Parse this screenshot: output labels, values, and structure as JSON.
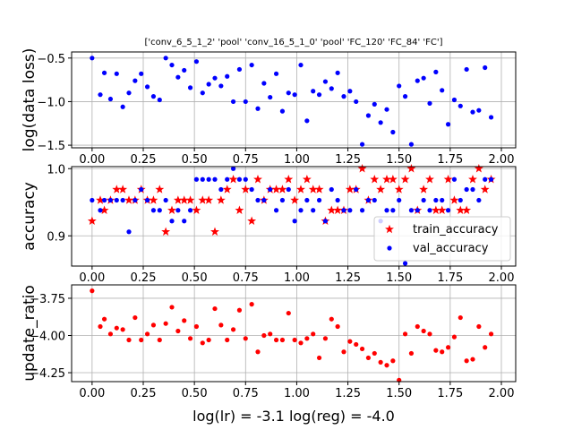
{
  "chart_data": {
    "title": "['conv_6_5_1_2' 'pool' 'conv_16_5_1_0' 'pool' 'FC_120' 'FC_84' 'FC']",
    "xlabel": "log(lr) = -3.1   log(reg) = -4.0",
    "grid": true,
    "panels": [
      {
        "type": "scatter",
        "ylabel": "log(data loss)",
        "xlim": [
          -0.1,
          2.07
        ],
        "ylim": [
          -1.53,
          -0.43
        ],
        "xticks": [
          0.0,
          0.25,
          0.5,
          0.75,
          1.0,
          1.25,
          1.5,
          1.75,
          2.0
        ],
        "xtick_labels": [
          "0.00",
          "0.25",
          "0.50",
          "0.75",
          "1.00",
          "1.25",
          "1.50",
          "1.75",
          "2.00"
        ],
        "yticks": [
          -0.5,
          -1.0,
          -1.5
        ],
        "ytick_labels": [
          "−0.5",
          "−1.0",
          "−1.5"
        ],
        "series": [
          {
            "color": "#0000ff",
            "marker": "dot",
            "x": [
              0.0,
              0.04,
              0.06,
              0.09,
              0.12,
              0.15,
              0.18,
              0.21,
              0.24,
              0.27,
              0.3,
              0.33,
              0.36,
              0.39,
              0.42,
              0.45,
              0.48,
              0.51,
              0.54,
              0.57,
              0.6,
              0.63,
              0.66,
              0.69,
              0.72,
              0.75,
              0.78,
              0.81,
              0.84,
              0.87,
              0.9,
              0.93,
              0.96,
              0.99,
              1.02,
              1.05,
              1.08,
              1.11,
              1.14,
              1.17,
              1.2,
              1.23,
              1.26,
              1.29,
              1.32,
              1.35,
              1.38,
              1.41,
              1.44,
              1.47,
              1.5,
              1.53,
              1.56,
              1.59,
              1.62,
              1.65,
              1.68,
              1.71,
              1.74,
              1.77,
              1.8,
              1.83,
              1.86,
              1.89,
              1.92,
              1.95
            ],
            "y": [
              -0.5,
              -0.92,
              -0.67,
              -0.97,
              -0.68,
              -1.06,
              -0.9,
              -0.76,
              -0.68,
              -0.83,
              -0.94,
              -0.98,
              -0.5,
              -0.58,
              -0.72,
              -0.64,
              -0.84,
              -0.54,
              -0.9,
              -0.8,
              -0.73,
              -0.82,
              -0.71,
              -1.0,
              -0.63,
              -1.0,
              -0.58,
              -1.08,
              -0.79,
              -0.95,
              -0.68,
              -1.11,
              -0.9,
              -0.92,
              -0.58,
              -1.22,
              -0.88,
              -0.92,
              -0.77,
              -0.85,
              -0.67,
              -0.94,
              -0.88,
              -1.0,
              -1.49,
              -1.16,
              -1.03,
              -1.24,
              -1.09,
              -1.35,
              -0.82,
              -0.94,
              -1.49,
              -0.76,
              -0.73,
              -1.02,
              -0.66,
              -0.87,
              -1.26,
              -0.98,
              -1.05,
              -0.63,
              -1.12,
              -1.1,
              -0.61,
              -1.18
            ]
          }
        ]
      },
      {
        "type": "scatter",
        "ylabel": "accuracy",
        "xlim": [
          -0.1,
          2.07
        ],
        "ylim": [
          0.855,
          1.003
        ],
        "yticks": [
          0.9,
          1.0
        ],
        "ytick_labels": [
          "0.9",
          "1.0"
        ],
        "legend": "lower-right",
        "series": [
          {
            "name": "train_accuracy",
            "color": "#ff0000",
            "marker": "star",
            "x": [
              0.0,
              0.04,
              0.06,
              0.09,
              0.12,
              0.15,
              0.18,
              0.21,
              0.24,
              0.27,
              0.3,
              0.33,
              0.36,
              0.39,
              0.42,
              0.45,
              0.48,
              0.51,
              0.54,
              0.57,
              0.6,
              0.63,
              0.66,
              0.69,
              0.72,
              0.75,
              0.78,
              0.81,
              0.84,
              0.87,
              0.9,
              0.93,
              0.96,
              0.99,
              1.02,
              1.05,
              1.08,
              1.11,
              1.14,
              1.17,
              1.2,
              1.23,
              1.26,
              1.29,
              1.32,
              1.35,
              1.38,
              1.41,
              1.44,
              1.47,
              1.5,
              1.53,
              1.56,
              1.59,
              1.62,
              1.65,
              1.68,
              1.71,
              1.74,
              1.77,
              1.8,
              1.83,
              1.86,
              1.89,
              1.92,
              1.95
            ],
            "y": [
              0.922,
              0.953,
              0.938,
              0.953,
              0.969,
              0.969,
              0.953,
              0.953,
              0.969,
              0.953,
              0.953,
              0.969,
              0.906,
              0.938,
              0.953,
              0.953,
              0.953,
              0.938,
              0.953,
              0.953,
              0.906,
              0.953,
              0.969,
              0.984,
              0.938,
              0.969,
              0.922,
              0.984,
              0.953,
              0.969,
              0.969,
              0.969,
              0.984,
              0.953,
              0.969,
              0.984,
              0.969,
              0.969,
              0.922,
              0.938,
              0.938,
              0.938,
              0.969,
              0.969,
              1.0,
              0.953,
              0.984,
              0.969,
              0.984,
              0.984,
              0.969,
              0.984,
              1.0,
              0.938,
              0.969,
              0.984,
              0.938,
              0.938,
              0.984,
              0.953,
              0.938,
              0.938,
              0.984,
              1.0,
              0.969,
              0.984
            ]
          },
          {
            "name": "val_accuracy",
            "color": "#0000ff",
            "marker": "dot",
            "x": [
              0.0,
              0.04,
              0.06,
              0.09,
              0.12,
              0.15,
              0.18,
              0.21,
              0.24,
              0.27,
              0.3,
              0.33,
              0.36,
              0.39,
              0.42,
              0.45,
              0.48,
              0.51,
              0.54,
              0.57,
              0.6,
              0.63,
              0.66,
              0.69,
              0.72,
              0.75,
              0.78,
              0.81,
              0.84,
              0.87,
              0.9,
              0.93,
              0.96,
              0.99,
              1.02,
              1.05,
              1.08,
              1.11,
              1.14,
              1.17,
              1.2,
              1.23,
              1.26,
              1.29,
              1.32,
              1.35,
              1.38,
              1.41,
              1.44,
              1.47,
              1.5,
              1.53,
              1.56,
              1.59,
              1.62,
              1.65,
              1.68,
              1.71,
              1.74,
              1.77,
              1.8,
              1.83,
              1.86,
              1.89,
              1.92,
              1.95
            ],
            "y": [
              0.953,
              0.938,
              0.953,
              0.953,
              0.953,
              0.953,
              0.906,
              0.953,
              0.969,
              0.953,
              0.938,
              0.938,
              0.953,
              0.922,
              0.938,
              0.922,
              0.938,
              0.984,
              0.984,
              0.984,
              0.984,
              0.969,
              0.984,
              1.0,
              0.984,
              0.984,
              0.969,
              0.953,
              0.953,
              0.969,
              0.938,
              0.953,
              0.969,
              0.922,
              0.938,
              0.953,
              0.938,
              0.953,
              0.922,
              0.969,
              0.953,
              0.938,
              0.938,
              0.969,
              0.938,
              0.953,
              0.953,
              0.922,
              0.938,
              0.938,
              0.953,
              0.859,
              0.938,
              0.938,
              0.953,
              0.938,
              0.953,
              0.953,
              0.938,
              0.984,
              0.953,
              0.969,
              0.969,
              0.953,
              0.984,
              0.984
            ]
          }
        ]
      },
      {
        "type": "scatter",
        "ylabel": "update_ratio",
        "xlim": [
          -0.1,
          2.07
        ],
        "ylim": [
          -4.31,
          -3.66
        ],
        "yticks": [
          -3.75,
          -4.0,
          -4.25
        ],
        "ytick_labels": [
          "−3.75",
          "−4.00",
          "−4.25"
        ],
        "series": [
          {
            "color": "#ff0000",
            "marker": "dot",
            "x": [
              0.0,
              0.04,
              0.06,
              0.09,
              0.12,
              0.15,
              0.18,
              0.21,
              0.24,
              0.27,
              0.3,
              0.33,
              0.36,
              0.39,
              0.42,
              0.45,
              0.48,
              0.51,
              0.54,
              0.57,
              0.6,
              0.63,
              0.66,
              0.69,
              0.72,
              0.75,
              0.78,
              0.81,
              0.84,
              0.87,
              0.9,
              0.93,
              0.96,
              0.99,
              1.02,
              1.05,
              1.08,
              1.11,
              1.14,
              1.17,
              1.2,
              1.23,
              1.26,
              1.29,
              1.32,
              1.35,
              1.38,
              1.41,
              1.44,
              1.47,
              1.5,
              1.53,
              1.56,
              1.59,
              1.62,
              1.65,
              1.68,
              1.71,
              1.74,
              1.77,
              1.8,
              1.83,
              1.86,
              1.89,
              1.92,
              1.95
            ],
            "y": [
              -3.7,
              -3.94,
              -3.89,
              -3.99,
              -3.95,
              -3.96,
              -4.03,
              -3.88,
              -4.03,
              -3.99,
              -3.93,
              -4.03,
              -3.92,
              -3.81,
              -3.97,
              -3.9,
              -4.02,
              -3.94,
              -4.05,
              -4.03,
              -3.82,
              -3.93,
              -4.03,
              -3.96,
              -3.83,
              -4.02,
              -3.79,
              -4.11,
              -4.0,
              -3.99,
              -4.03,
              -4.03,
              -3.85,
              -4.03,
              -4.05,
              -4.02,
              -3.99,
              -4.15,
              -4.02,
              -3.89,
              -3.94,
              -4.11,
              -4.04,
              -4.06,
              -4.09,
              -4.15,
              -4.12,
              -4.18,
              -4.2,
              -4.17,
              -4.3,
              -3.99,
              -4.12,
              -3.94,
              -3.97,
              -3.99,
              -4.1,
              -4.11,
              -4.08,
              -4.01,
              -3.88,
              -4.17,
              -4.16,
              -3.94,
              -4.08,
              -3.99
            ]
          }
        ]
      }
    ]
  }
}
